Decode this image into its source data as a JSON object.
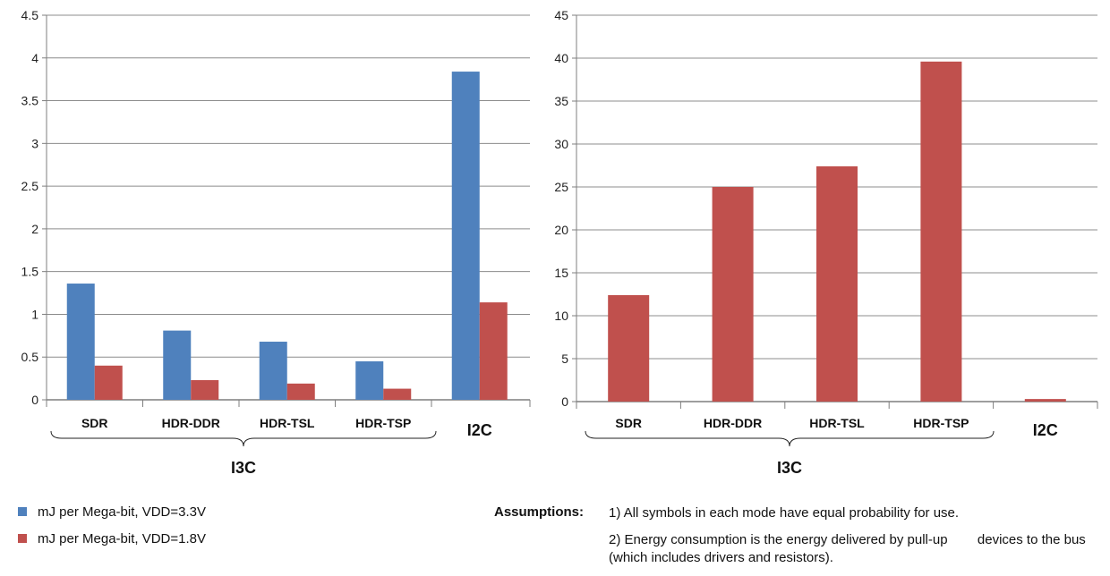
{
  "colors": {
    "blue": "#4f81bd",
    "red": "#c0504d",
    "grid": "#8c8c8c",
    "axis": "#7f7f7f"
  },
  "chart_data": [
    {
      "type": "bar",
      "categories": [
        "SDR",
        "HDR-DDR",
        "HDR-TSL",
        "HDR-TSP",
        "I2C"
      ],
      "group_label": "I3C",
      "series": [
        {
          "name": "mJ per Mega-bit, VDD=3.3V",
          "values": [
            1.36,
            0.81,
            0.68,
            0.45,
            3.84
          ]
        },
        {
          "name": "mJ per Mega-bit, VDD=1.8V",
          "values": [
            0.4,
            0.23,
            0.19,
            0.13,
            1.14
          ]
        }
      ],
      "ylim": [
        0,
        4.5
      ],
      "yticks": [
        "0",
        "0.5",
        "1",
        "1.5",
        "2",
        "2.5",
        "3",
        "3.5",
        "4",
        "4.5"
      ],
      "grid": true
    },
    {
      "type": "bar",
      "categories": [
        "SDR",
        "HDR-DDR",
        "HDR-TSL",
        "HDR-TSP",
        "I2C"
      ],
      "group_label": "I3C",
      "series": [
        {
          "name": "mJ per Mega-bit, VDD=1.8V",
          "values": [
            12.4,
            25.0,
            27.4,
            39.6,
            0.3
          ]
        }
      ],
      "ylim": [
        0,
        45
      ],
      "yticks": [
        "0",
        "5",
        "10",
        "15",
        "20",
        "25",
        "30",
        "35",
        "40",
        "45"
      ],
      "grid": true
    }
  ],
  "legend": [
    {
      "label": "mJ per Mega-bit, VDD=3.3V",
      "color": "#4f81bd"
    },
    {
      "label": "mJ per Mega-bit, VDD=1.8V",
      "color": "#c0504d"
    }
  ],
  "assumptions": {
    "label": "Assumptions:",
    "items": [
      "1) All symbols in each mode have equal probability for use.",
      "2) Energy consumption is the energy delivered by pull-up        devices to the bus (which includes drivers and resistors)."
    ]
  }
}
